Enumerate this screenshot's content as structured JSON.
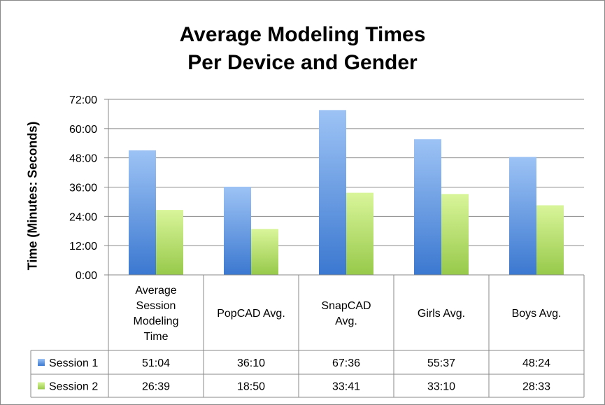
{
  "chart_data": {
    "type": "bar",
    "title": [
      "Average Modeling Times",
      "Per Device and Gender"
    ],
    "ylabel": "Time (Minutes: Seconds)",
    "xlabel": "",
    "ylim": [
      0,
      72
    ],
    "yticks": [
      0,
      12,
      24,
      36,
      48,
      60,
      72
    ],
    "ytick_labels": [
      "0:00",
      "12:00",
      "24:00",
      "36:00",
      "48:00",
      "60:00",
      "72:00"
    ],
    "categories": [
      [
        "Average",
        "Session",
        "Modeling",
        "Time"
      ],
      [
        "PopCAD Avg."
      ],
      [
        "SnapCAD",
        "Avg."
      ],
      [
        "Girls Avg."
      ],
      [
        "Boys Avg."
      ]
    ],
    "series": [
      {
        "name": "Session 1",
        "color": "#4f81bd",
        "values": [
          51.067,
          36.167,
          67.6,
          55.617,
          48.4
        ],
        "labels": [
          "51:04",
          "36:10",
          "67:36",
          "55:37",
          "48:24"
        ]
      },
      {
        "name": "Session 2",
        "color": "#9bbb59",
        "values": [
          26.65,
          18.833,
          33.683,
          33.167,
          28.55
        ],
        "labels": [
          "26:39",
          "18:50",
          "33:41",
          "33:10",
          "28:33"
        ]
      }
    ],
    "grid": true,
    "legend": "data-table"
  }
}
